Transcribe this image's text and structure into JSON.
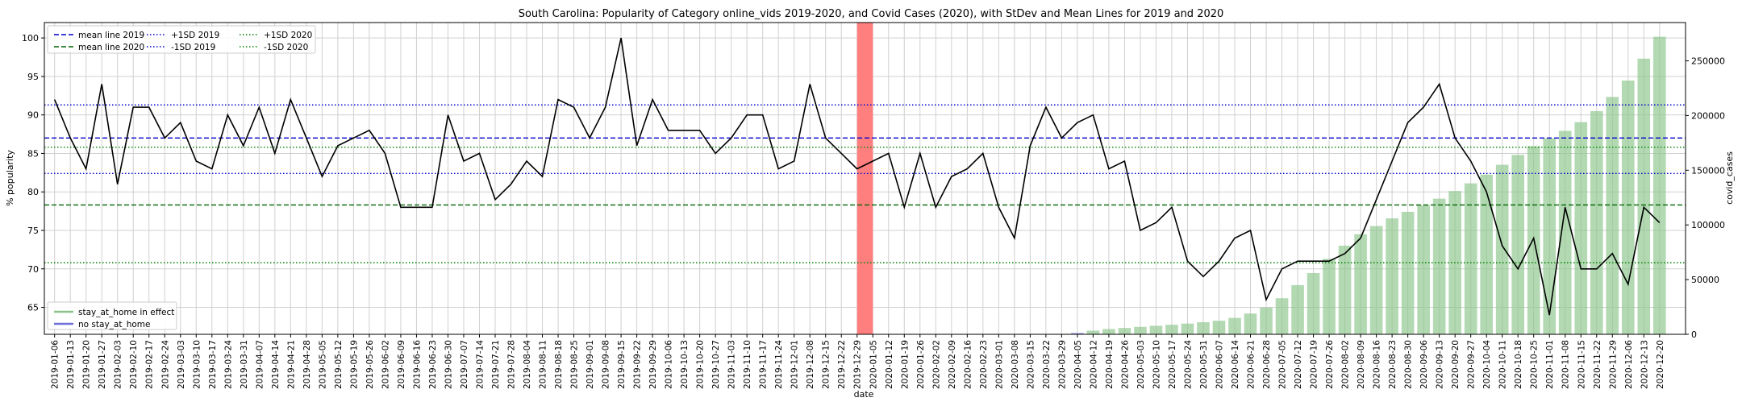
{
  "chart_data": {
    "type": "line+bar",
    "title": "South Carolina: Popularity of Category online_vids 2019-2020, and Covid Cases (2020), with StDev and Mean Lines for 2019 and 2020",
    "xlabel": "date",
    "ylabel_left": "% popularity",
    "ylabel_right": "covid_cases",
    "ylim_left": [
      61.5,
      102
    ],
    "ylim_right": [
      0,
      285000
    ],
    "yticks_left": [
      65,
      70,
      75,
      80,
      85,
      90,
      95,
      100
    ],
    "yticks_right": [
      0,
      50000,
      100000,
      150000,
      200000,
      250000
    ],
    "ytick_labels_right": [
      "0",
      "50000",
      "100000",
      "150000",
      "200000",
      "250000"
    ],
    "dates": [
      "2019-01-06",
      "2019-01-13",
      "2019-01-20",
      "2019-01-27",
      "2019-02-03",
      "2019-02-10",
      "2019-02-17",
      "2019-02-24",
      "2019-03-03",
      "2019-03-10",
      "2019-03-17",
      "2019-03-24",
      "2019-03-31",
      "2019-04-07",
      "2019-04-14",
      "2019-04-21",
      "2019-04-28",
      "2019-05-05",
      "2019-05-12",
      "2019-05-19",
      "2019-05-26",
      "2019-06-02",
      "2019-06-09",
      "2019-06-16",
      "2019-06-23",
      "2019-06-30",
      "2019-07-07",
      "2019-07-14",
      "2019-07-21",
      "2019-07-28",
      "2019-08-04",
      "2019-08-11",
      "2019-08-18",
      "2019-08-25",
      "2019-09-01",
      "2019-09-08",
      "2019-09-15",
      "2019-09-22",
      "2019-09-29",
      "2019-10-06",
      "2019-10-13",
      "2019-10-20",
      "2019-10-27",
      "2019-11-03",
      "2019-11-10",
      "2019-11-17",
      "2019-11-24",
      "2019-12-01",
      "2019-12-08",
      "2019-12-15",
      "2019-12-22",
      "2019-12-29",
      "2020-01-05",
      "2020-01-12",
      "2020-01-19",
      "2020-01-26",
      "2020-02-02",
      "2020-02-09",
      "2020-02-16",
      "2020-02-23",
      "2020-03-01",
      "2020-03-08",
      "2020-03-15",
      "2020-03-22",
      "2020-03-29",
      "2020-04-05",
      "2020-04-12",
      "2020-04-19",
      "2020-04-26",
      "2020-05-03",
      "2020-05-10",
      "2020-05-17",
      "2020-05-24",
      "2020-05-31",
      "2020-06-07",
      "2020-06-14",
      "2020-06-21",
      "2020-06-28",
      "2020-07-05",
      "2020-07-12",
      "2020-07-19",
      "2020-07-26",
      "2020-08-02",
      "2020-08-09",
      "2020-08-16",
      "2020-08-23",
      "2020-08-30",
      "2020-09-06",
      "2020-09-13",
      "2020-09-20",
      "2020-09-27",
      "2020-10-04",
      "2020-10-11",
      "2020-10-18",
      "2020-10-25",
      "2020-11-01",
      "2020-11-08",
      "2020-11-15",
      "2020-11-22",
      "2020-11-29",
      "2020-12-06",
      "2020-12-13",
      "2020-12-20"
    ],
    "series": [
      {
        "name": "popularity",
        "color": "#000000",
        "values": [
          92,
          87,
          83,
          94,
          81,
          91,
          91,
          87,
          89,
          84,
          83,
          90,
          86,
          91,
          85,
          92,
          87,
          82,
          86,
          87,
          88,
          85,
          78,
          78,
          78,
          90,
          84,
          85,
          79,
          81,
          84,
          82,
          92,
          91,
          87,
          91,
          100,
          86,
          92,
          88,
          88,
          88,
          85,
          87,
          90,
          90,
          83,
          84,
          94,
          87,
          85,
          83,
          84,
          85,
          78,
          85,
          78,
          82,
          83,
          85,
          78,
          74,
          86,
          91,
          87,
          89,
          90,
          83,
          84,
          75,
          76,
          78,
          71,
          69,
          71,
          74,
          75,
          66,
          70,
          71,
          71,
          71,
          72,
          74,
          79,
          84,
          89,
          91,
          94,
          87,
          84,
          80,
          73,
          70,
          74,
          64,
          78,
          70,
          70,
          72,
          68,
          78,
          76
        ]
      },
      {
        "name": "covid_cases",
        "color": "#8bc48b",
        "values": [
          null,
          null,
          null,
          null,
          null,
          null,
          null,
          null,
          null,
          null,
          null,
          null,
          null,
          null,
          null,
          null,
          null,
          null,
          null,
          null,
          null,
          null,
          null,
          null,
          null,
          null,
          null,
          null,
          null,
          null,
          null,
          null,
          null,
          null,
          null,
          null,
          null,
          null,
          null,
          null,
          null,
          null,
          null,
          null,
          null,
          null,
          null,
          null,
          null,
          null,
          null,
          null,
          null,
          null,
          null,
          null,
          null,
          null,
          null,
          null,
          null,
          null,
          null,
          null,
          0,
          1200,
          3400,
          4800,
          5800,
          6800,
          7800,
          8700,
          9800,
          11100,
          12400,
          15000,
          19000,
          24500,
          33000,
          45000,
          56000,
          69000,
          81000,
          91500,
          99000,
          106000,
          112000,
          118000,
          124000,
          131000,
          138000,
          146000,
          155000,
          164000,
          172000,
          179000,
          186000,
          194000,
          204000,
          217000,
          232000,
          252000,
          272000
        ]
      }
    ],
    "reference_lines": [
      {
        "name": "mean line 2019",
        "value": 87.0,
        "color": "#0000cc",
        "style": "dashed"
      },
      {
        "name": "+1SD 2019",
        "value": 91.3,
        "color": "#0000cc",
        "style": "dotted"
      },
      {
        "name": "-1SD 2019",
        "value": 82.4,
        "color": "#0000cc",
        "style": "dotted"
      },
      {
        "name": "mean line 2020",
        "value": 78.3,
        "color": "#006400",
        "style": "dashed"
      },
      {
        "name": "+1SD 2020",
        "value": 85.8,
        "color": "#008000",
        "style": "dotted"
      },
      {
        "name": "-1SD 2020",
        "value": 70.8,
        "color": "#008000",
        "style": "dotted"
      }
    ],
    "highlight_band": {
      "start": "2019-12-29",
      "end": "2020-01-05",
      "color": "#ff7f7f"
    },
    "legend_upper": [
      "mean line 2019",
      "mean line 2020",
      "+1SD 2019",
      "-1SD 2019",
      "+1SD 2020",
      "-1SD 2020"
    ],
    "legend_lower": [
      {
        "label": "stay_at_home in effect",
        "color": "#8bc48b"
      },
      {
        "label": "no stay_at_home",
        "color": "#7070dd"
      }
    ],
    "legend_placement": [
      "upper-left",
      "lower-left"
    ],
    "grid": true
  }
}
